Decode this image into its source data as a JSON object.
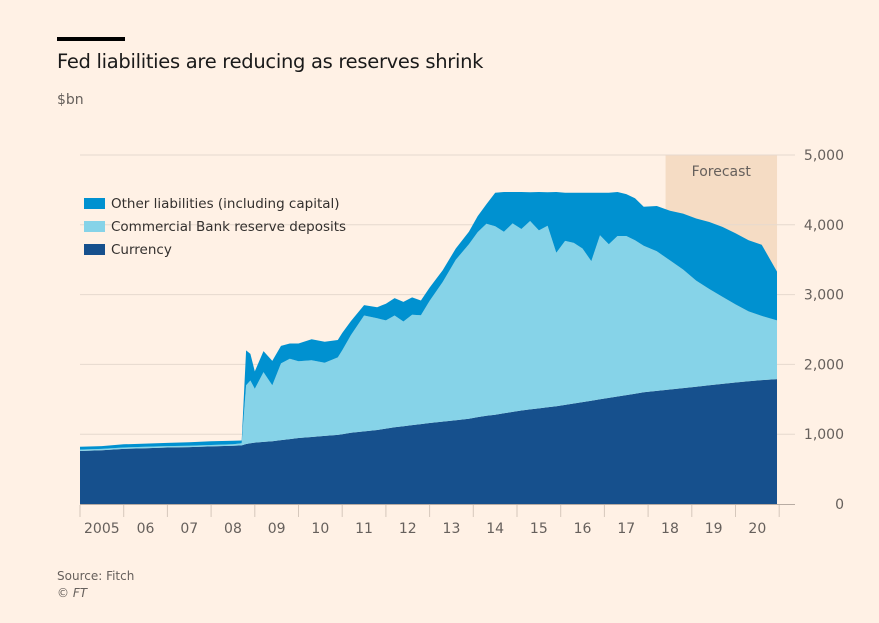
{
  "header": {
    "title": "Fed liabilities are reducing as reserves shrink",
    "subtitle": "$bn"
  },
  "footer": {
    "source": "Source: Fitch",
    "copyright": "© FT"
  },
  "colors": {
    "background": "#fff1e5",
    "currency": "#16508d",
    "reserves": "#86d3e8",
    "other": "#0091d0",
    "forecast_band": "#f5dcc4",
    "grid": "#e6d9ce",
    "axis_text": "#66605c"
  },
  "chart_data": {
    "type": "area",
    "stacked": true,
    "title": "Fed liabilities are reducing as reserves shrink",
    "ylabel": "$bn",
    "xlabel": "",
    "ylim": [
      0,
      5000
    ],
    "xlim": [
      2005,
      2020.95
    ],
    "yticks": [
      0,
      1000,
      2000,
      3000,
      4000,
      5000
    ],
    "ytick_labels": [
      "0",
      "1,000",
      "2,000",
      "3,000",
      "4,000",
      "5,000"
    ],
    "xtick_labels": [
      "2005",
      "06",
      "07",
      "08",
      "09",
      "10",
      "11",
      "12",
      "13",
      "14",
      "15",
      "16",
      "17",
      "18",
      "19",
      "20"
    ],
    "grid": true,
    "legend_position": "top-left",
    "forecast": {
      "label": "Forecast",
      "start": 2018.4,
      "end": 2020.95
    },
    "x": [
      2005.0,
      2005.5,
      2006.0,
      2006.5,
      2007.0,
      2007.5,
      2008.0,
      2008.5,
      2008.7,
      2008.8,
      2008.9,
      2009.0,
      2009.2,
      2009.4,
      2009.6,
      2009.8,
      2010.0,
      2010.3,
      2010.6,
      2010.9,
      2011.0,
      2011.2,
      2011.5,
      2011.8,
      2012.0,
      2012.2,
      2012.4,
      2012.6,
      2012.8,
      2013.0,
      2013.3,
      2013.6,
      2013.9,
      2014.1,
      2014.3,
      2014.5,
      2014.7,
      2014.9,
      2015.1,
      2015.3,
      2015.5,
      2015.7,
      2015.9,
      2016.1,
      2016.3,
      2016.5,
      2016.7,
      2016.9,
      2017.1,
      2017.3,
      2017.5,
      2017.7,
      2017.9,
      2018.2,
      2018.5,
      2018.8,
      2019.1,
      2019.4,
      2019.7,
      2020.0,
      2020.3,
      2020.6,
      2020.95
    ],
    "series": [
      {
        "name": "Currency",
        "values": [
          760,
          770,
          790,
          800,
          810,
          815,
          825,
          835,
          840,
          860,
          870,
          880,
          890,
          900,
          915,
          930,
          945,
          960,
          975,
          990,
          1000,
          1020,
          1040,
          1060,
          1080,
          1100,
          1115,
          1130,
          1145,
          1160,
          1180,
          1200,
          1220,
          1245,
          1265,
          1280,
          1300,
          1320,
          1340,
          1355,
          1370,
          1385,
          1400,
          1420,
          1440,
          1460,
          1480,
          1500,
          1520,
          1540,
          1560,
          1580,
          1600,
          1620,
          1640,
          1660,
          1680,
          1700,
          1720,
          1740,
          1760,
          1775,
          1790
        ]
      },
      {
        "name": "Commercial Bank reserve deposits",
        "values": [
          20,
          20,
          20,
          20,
          20,
          20,
          20,
          20,
          30,
          840,
          900,
          770,
          1000,
          800,
          1100,
          1150,
          1100,
          1100,
          1050,
          1110,
          1200,
          1400,
          1660,
          1600,
          1550,
          1600,
          1500,
          1580,
          1560,
          1750,
          2000,
          2300,
          2500,
          2650,
          2750,
          2700,
          2600,
          2700,
          2600,
          2700,
          2550,
          2600,
          2200,
          2350,
          2300,
          2200,
          2000,
          2350,
          2200,
          2300,
          2280,
          2200,
          2100,
          2000,
          1850,
          1700,
          1520,
          1380,
          1250,
          1120,
          1000,
          920,
          840
        ]
      },
      {
        "name": "Other liabilities (including capital)",
        "values": [
          40,
          40,
          45,
          45,
          45,
          50,
          55,
          50,
          40,
          500,
          380,
          250,
          300,
          350,
          250,
          220,
          255,
          300,
          300,
          250,
          250,
          200,
          150,
          160,
          240,
          250,
          280,
          250,
          210,
          190,
          170,
          160,
          180,
          230,
          280,
          480,
          570,
          450,
          530,
          410,
          550,
          480,
          870,
          690,
          720,
          800,
          980,
          610,
          740,
          630,
          600,
          600,
          560,
          650,
          710,
          800,
          890,
          960,
          1000,
          1020,
          1020,
          1020,
          700
        ]
      }
    ]
  },
  "legend": {
    "items": [
      {
        "label": "Other liabilities (including capital)",
        "series": "other"
      },
      {
        "label": "Commercial Bank reserve deposits",
        "series": "reserves"
      },
      {
        "label": "Currency",
        "series": "currency"
      }
    ]
  }
}
